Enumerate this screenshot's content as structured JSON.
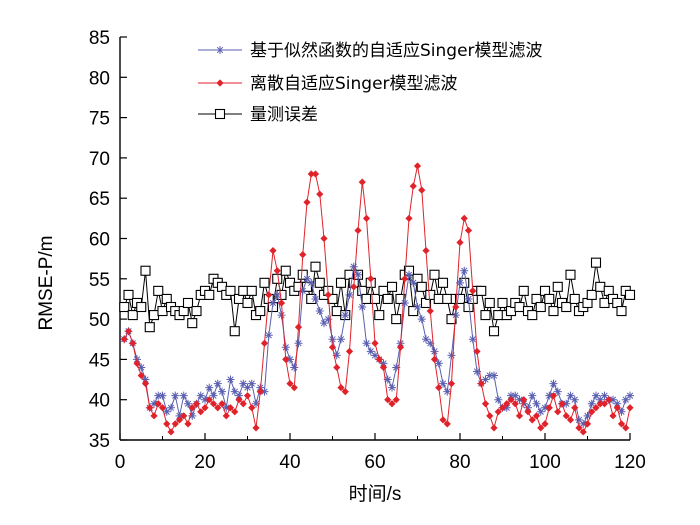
{
  "chart_data": {
    "type": "line",
    "xlabel": "时间/s",
    "ylabel": "RMSE-P/m",
    "xlim": [
      0,
      120
    ],
    "ylim": [
      35,
      85
    ],
    "xticks": [
      0,
      20,
      40,
      60,
      80,
      100,
      120
    ],
    "yticks": [
      35,
      40,
      45,
      50,
      55,
      60,
      65,
      70,
      75,
      80,
      85
    ],
    "grid": false,
    "legend_position": "top-right",
    "series": [
      {
        "name": "基于似然函数的自适应Singer模型滤波",
        "color": "#5a5fb0",
        "marker": "asterisk",
        "x": [
          1,
          2,
          3,
          4,
          5,
          6,
          7,
          8,
          9,
          10,
          11,
          12,
          13,
          14,
          15,
          16,
          17,
          18,
          19,
          20,
          21,
          22,
          23,
          24,
          25,
          26,
          27,
          28,
          29,
          30,
          31,
          32,
          33,
          34,
          35,
          36,
          37,
          38,
          39,
          40,
          41,
          42,
          43,
          44,
          45,
          46,
          47,
          48,
          49,
          50,
          51,
          52,
          53,
          54,
          55,
          56,
          57,
          58,
          59,
          60,
          61,
          62,
          63,
          64,
          65,
          66,
          67,
          68,
          69,
          70,
          71,
          72,
          73,
          74,
          75,
          76,
          77,
          78,
          79,
          80,
          81,
          82,
          83,
          84,
          85,
          86,
          87,
          88,
          89,
          90,
          91,
          92,
          93,
          94,
          95,
          96,
          97,
          98,
          99,
          100,
          101,
          102,
          103,
          104,
          105,
          106,
          107,
          108,
          109,
          110,
          111,
          112,
          113,
          114,
          115,
          116,
          117,
          118,
          119,
          120
        ],
        "y": [
          47.5,
          48.5,
          47.0,
          45.0,
          44.0,
          42.5,
          39.0,
          39.5,
          40.5,
          40.5,
          38.5,
          39.0,
          40.5,
          38.0,
          40.5,
          39.5,
          38.0,
          39.5,
          40.5,
          40.0,
          41.5,
          40.5,
          42.0,
          41.0,
          39.0,
          42.5,
          41.0,
          40.5,
          42.0,
          41.5,
          42.0,
          39.5,
          41.5,
          41.0,
          48.0,
          52.0,
          53.0,
          50.5,
          46.5,
          45.0,
          44.0,
          47.0,
          53.5,
          55.0,
          54.5,
          52.5,
          51.0,
          49.5,
          50.0,
          47.5,
          45.5,
          47.5,
          50.5,
          53.0,
          56.5,
          55.5,
          51.5,
          47.0,
          46.0,
          45.5,
          45.0,
          44.5,
          42.5,
          41.5,
          44.0,
          47.0,
          52.0,
          55.5,
          54.5,
          51.5,
          50.0,
          47.5,
          47.0,
          46.0,
          44.5,
          42.0,
          41.0,
          45.5,
          50.5,
          54.5,
          56.0,
          52.5,
          47.5,
          43.5,
          42.0,
          42.5,
          43.0,
          43.0,
          40.0,
          39.0,
          39.0,
          40.5,
          40.5,
          40.0,
          39.5,
          39.0,
          40.5,
          39.5,
          38.5,
          39.0,
          40.5,
          42.0,
          41.0,
          39.5,
          39.5,
          40.5,
          40.0,
          37.5,
          37.0,
          38.0,
          39.5,
          40.5,
          40.0,
          40.5,
          40.0,
          40.0,
          39.5,
          38.5,
          40.0,
          40.5
        ]
      },
      {
        "name": "离散自适应Singer模型滤波",
        "color": "#e0222a",
        "marker": "diamond",
        "x": [
          1,
          2,
          3,
          4,
          5,
          6,
          7,
          8,
          9,
          10,
          11,
          12,
          13,
          14,
          15,
          16,
          17,
          18,
          19,
          20,
          21,
          22,
          23,
          24,
          25,
          26,
          27,
          28,
          29,
          30,
          31,
          32,
          33,
          34,
          35,
          36,
          37,
          38,
          39,
          40,
          41,
          42,
          43,
          44,
          45,
          46,
          47,
          48,
          49,
          50,
          51,
          52,
          53,
          54,
          55,
          56,
          57,
          58,
          59,
          60,
          61,
          62,
          63,
          64,
          65,
          66,
          67,
          68,
          69,
          70,
          71,
          72,
          73,
          74,
          75,
          76,
          77,
          78,
          79,
          80,
          81,
          82,
          83,
          84,
          85,
          86,
          87,
          88,
          89,
          90,
          91,
          92,
          93,
          94,
          95,
          96,
          97,
          98,
          99,
          100,
          101,
          102,
          103,
          104,
          105,
          106,
          107,
          108,
          109,
          110,
          111,
          112,
          113,
          114,
          115,
          116,
          117,
          118,
          119,
          120
        ],
        "y": [
          47.5,
          48.5,
          47.0,
          44.5,
          43.0,
          42.0,
          39.0,
          38.0,
          39.5,
          39.0,
          37.0,
          36.0,
          37.0,
          37.5,
          38.0,
          37.0,
          39.0,
          39.5,
          38.5,
          39.0,
          40.0,
          39.5,
          39.0,
          39.5,
          38.0,
          39.0,
          38.5,
          40.0,
          39.5,
          40.5,
          39.0,
          36.5,
          41.0,
          47.0,
          53.0,
          58.5,
          56.0,
          52.0,
          45.0,
          42.0,
          41.5,
          49.0,
          58.0,
          64.5,
          68.0,
          68.0,
          65.5,
          60.0,
          53.0,
          46.5,
          44.0,
          41.5,
          41.0,
          46.0,
          54.0,
          61.0,
          67.0,
          62.5,
          55.0,
          47.0,
          45.0,
          44.0,
          40.0,
          39.5,
          40.0,
          46.5,
          55.0,
          62.5,
          66.5,
          69.0,
          66.0,
          58.5,
          51.0,
          45.0,
          41.5,
          37.5,
          37.0,
          42.0,
          51.5,
          59.5,
          62.5,
          61.0,
          53.5,
          46.0,
          42.0,
          39.5,
          38.0,
          36.5,
          38.5,
          39.0,
          39.5,
          40.0,
          39.5,
          38.0,
          40.0,
          38.5,
          37.5,
          38.0,
          36.5,
          37.0,
          39.0,
          40.5,
          38.5,
          39.5,
          38.0,
          37.5,
          39.0,
          36.5,
          36.0,
          37.0,
          38.5,
          39.0,
          39.5,
          39.5,
          40.0,
          38.0,
          39.0,
          37.0,
          36.5,
          39.0
        ]
      },
      {
        "name": "量测误差",
        "color": "#000000",
        "marker": "square",
        "x": [
          1,
          2,
          3,
          4,
          5,
          6,
          7,
          8,
          9,
          10,
          11,
          12,
          13,
          14,
          15,
          16,
          17,
          18,
          19,
          20,
          21,
          22,
          23,
          24,
          25,
          26,
          27,
          28,
          29,
          30,
          31,
          32,
          33,
          34,
          35,
          36,
          37,
          38,
          39,
          40,
          41,
          42,
          43,
          44,
          45,
          46,
          47,
          48,
          49,
          50,
          51,
          52,
          53,
          54,
          55,
          56,
          57,
          58,
          59,
          60,
          61,
          62,
          63,
          64,
          65,
          66,
          67,
          68,
          69,
          70,
          71,
          72,
          73,
          74,
          75,
          76,
          77,
          78,
          79,
          80,
          81,
          82,
          83,
          84,
          85,
          86,
          87,
          88,
          89,
          90,
          91,
          92,
          93,
          94,
          95,
          96,
          97,
          98,
          99,
          100,
          101,
          102,
          103,
          104,
          105,
          106,
          107,
          108,
          109,
          110,
          111,
          112,
          113,
          114,
          115,
          116,
          117,
          118,
          119,
          120
        ],
        "y": [
          51.5,
          53.0,
          50.5,
          52.0,
          51.5,
          56.0,
          49.0,
          50.5,
          53.5,
          51.0,
          52.5,
          51.5,
          51.0,
          50.5,
          51.0,
          52.0,
          49.5,
          51.0,
          53.0,
          53.5,
          53.0,
          55.0,
          54.5,
          54.0,
          53.0,
          53.5,
          48.5,
          52.5,
          53.5,
          52.0,
          53.5,
          50.5,
          51.0,
          54.5,
          52.5,
          51.5,
          55.0,
          53.0,
          56.0,
          54.5,
          53.5,
          54.0,
          55.5,
          54.0,
          52.5,
          56.5,
          54.5,
          53.0,
          53.5,
          52.5,
          51.0,
          54.5,
          50.5,
          55.5,
          54.5,
          55.5,
          53.5,
          52.5,
          54.5,
          52.5,
          50.5,
          53.5,
          52.5,
          54.0,
          50.0,
          52.5,
          55.5,
          56.0,
          51.0,
          55.0,
          54.0,
          52.0,
          53.0,
          55.5,
          52.5,
          54.5,
          52.5,
          50.0,
          52.5,
          52.5,
          54.5,
          51.5,
          52.5,
          53.5,
          53.5,
          50.5,
          52.0,
          48.5,
          50.5,
          52.0,
          50.5,
          51.0,
          52.0,
          51.5,
          53.5,
          51.0,
          50.5,
          52.5,
          51.5,
          53.5,
          52.5,
          51.0,
          54.0,
          52.0,
          51.5,
          55.5,
          52.5,
          51.0,
          51.5,
          52.0,
          53.0,
          57.0,
          54.0,
          52.0,
          53.5,
          52.5,
          52.0,
          51.0,
          53.5,
          53.0
        ]
      }
    ]
  }
}
